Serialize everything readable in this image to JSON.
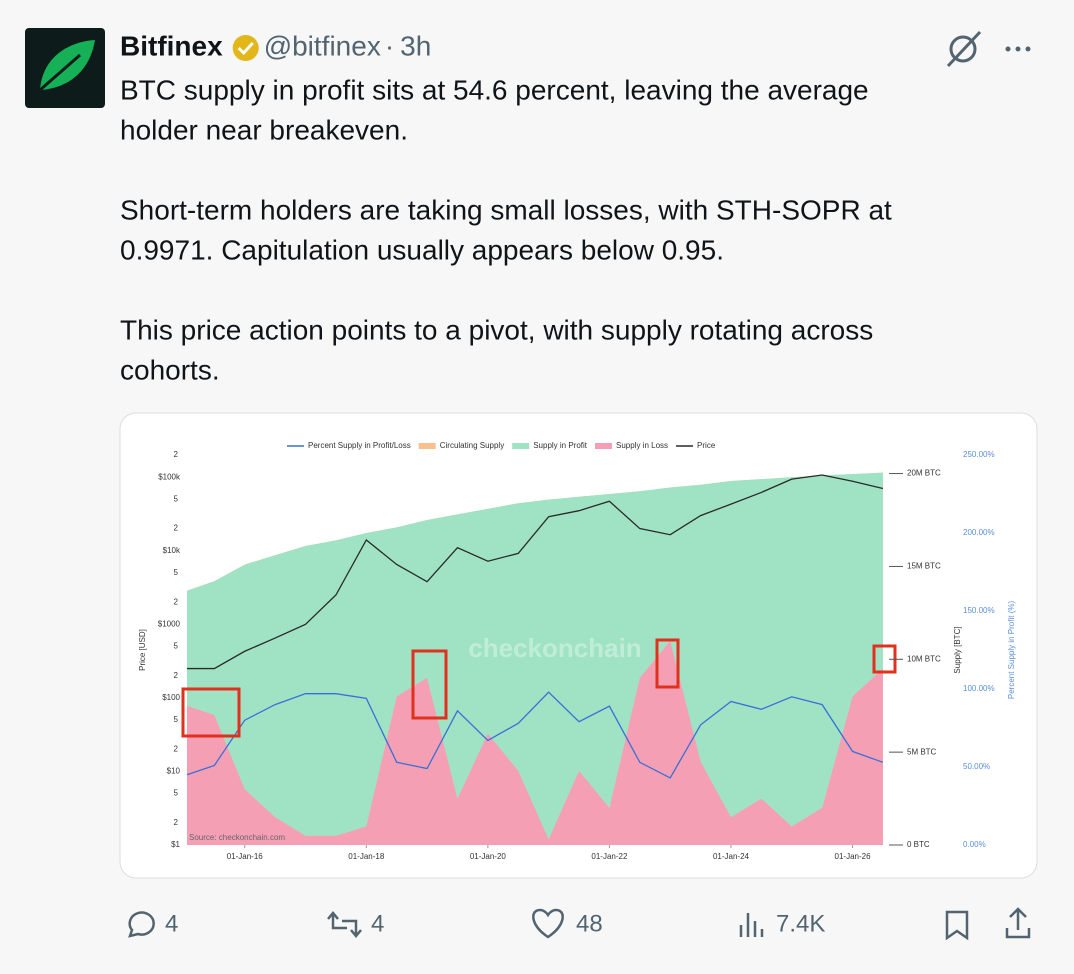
{
  "tweet": {
    "author": "Bitfinex",
    "handle": "@bitfinex",
    "separator": "·",
    "time": "3h",
    "paragraphs": [
      [
        "BTC supply in profit sits at 54.6 percent, leaving the average",
        "holder near breakeven."
      ],
      [
        "Short-term holders are taking small losses, with STH-SOPR at",
        "0.9971. Capitulation usually appears below 0.95."
      ],
      [
        "This price action points to a pivot, with supply rotating across",
        "cohorts."
      ]
    ],
    "replies": "4",
    "reposts": "4",
    "likes": "48",
    "views": "7.4K"
  },
  "chart_data": {
    "type": "area",
    "watermark": "checkonchain",
    "source": "Source: checkonchain.com",
    "y_label": "Price [USD]",
    "y2_label": "Supply [BTC]",
    "y3_label": "Percent Supply in Profit (%)",
    "x": [
      2015.05,
      2015.5,
      2016.0,
      2016.5,
      2017.0,
      2017.5,
      2018.0,
      2018.5,
      2019.0,
      2019.5,
      2020.0,
      2020.5,
      2021.0,
      2021.5,
      2022.0,
      2022.5,
      2023.0,
      2023.5,
      2024.0,
      2024.5,
      2025.0,
      2025.5,
      2026.0,
      2026.5
    ],
    "xlim": [
      2015.05,
      2026.6
    ],
    "xticks": [
      {
        "value": 2016,
        "label": "01-Jan-16"
      },
      {
        "value": 2018,
        "label": "01-Jan-18"
      },
      {
        "value": 2020,
        "label": "01-Jan-20"
      },
      {
        "value": 2022,
        "label": "01-Jan-22"
      },
      {
        "value": 2024,
        "label": "01-Jan-24"
      },
      {
        "value": 2026,
        "label": "01-Jan-26"
      }
    ],
    "ylog": true,
    "ylim": [
      1,
      200000
    ],
    "yticks": [
      {
        "value": 1,
        "label": "$1"
      },
      2,
      5,
      {
        "value": 10,
        "label": "$10"
      },
      {
        "value": 20,
        "label": "2"
      },
      {
        "value": 50,
        "label": "5"
      },
      {
        "value": 100,
        "label": "$100"
      },
      {
        "value": 200,
        "label": "2"
      },
      {
        "value": 500,
        "label": "5"
      },
      {
        "value": 1000,
        "label": "$1000"
      },
      {
        "value": 2000,
        "label": "2"
      },
      {
        "value": 5000,
        "label": "5"
      },
      {
        "value": 10000,
        "label": "$10k"
      },
      {
        "value": 20000,
        "label": "2"
      },
      {
        "value": 50000,
        "label": "5"
      },
      {
        "value": 100000,
        "label": "$100k"
      },
      {
        "value": 200000,
        "label": "2"
      }
    ],
    "y2lim": [
      0,
      21
    ],
    "y2ticks": [
      {
        "value": 0,
        "label": "0 BTC"
      },
      {
        "value": 5,
        "label": "5M BTC"
      },
      {
        "value": 10,
        "label": "10M BTC"
      },
      {
        "value": 15,
        "label": "15M BTC"
      },
      {
        "value": 20,
        "label": "20M BTC"
      }
    ],
    "y3lim": [
      0,
      250
    ],
    "y3ticks": [
      {
        "value": 0,
        "label": "0.00%"
      },
      {
        "value": 50,
        "label": "50.00%"
      },
      {
        "value": 100,
        "label": "100.00%"
      },
      {
        "value": 150,
        "label": "150.00%"
      },
      {
        "value": 200,
        "label": "200.00%"
      },
      {
        "value": 250,
        "label": "250.00%"
      }
    ],
    "series": [
      {
        "name": "Percent Supply in Profit/Loss",
        "color": "#3a6fd8",
        "axis": "y3",
        "kind": "line",
        "values": [
          45,
          51,
          80,
          90,
          97,
          97,
          94,
          53,
          49,
          86,
          67,
          78,
          98,
          79,
          89,
          53,
          43,
          77,
          92,
          87,
          95,
          90,
          60,
          53
        ]
      },
      {
        "name": "Circulating Supply",
        "color": "#f9c08f",
        "axis": "y2",
        "kind": "area",
        "values": [
          13.7,
          14.2,
          15.1,
          15.6,
          16.1,
          16.4,
          16.8,
          17.1,
          17.5,
          17.8,
          18.1,
          18.4,
          18.6,
          18.75,
          18.9,
          19.05,
          19.25,
          19.4,
          19.6,
          19.7,
          19.8,
          19.9,
          19.97,
          20.05
        ]
      },
      {
        "name": "Supply in Profit",
        "color": "#9fe3c4",
        "axis": "y2",
        "kind": "area",
        "stack": "supply",
        "values": [
          6.2,
          7.2,
          12.1,
          14.1,
          15.6,
          15.9,
          15.8,
          9.1,
          8.5,
          15.3,
          12.1,
          14.4,
          18.3,
          14.75,
          16.9,
          10.05,
          8.25,
          14.9,
          18.1,
          17.2,
          18.8,
          17.9,
          11.97,
          10.55
        ]
      },
      {
        "name": "Supply in Loss",
        "color": "#f59fb5",
        "axis": "y2",
        "kind": "area",
        "stack": "supply",
        "values": [
          7.5,
          7.0,
          3.0,
          1.5,
          0.5,
          0.5,
          1.0,
          8.0,
          9.0,
          2.5,
          6.0,
          4.0,
          0.3,
          4.0,
          2.0,
          9.0,
          11.0,
          4.5,
          1.5,
          2.5,
          1.0,
          2.0,
          8.0,
          9.5
        ]
      },
      {
        "name": "Price",
        "color": "#2a2a2a",
        "axis": "y",
        "kind": "line",
        "values": [
          250,
          250,
          430,
          650,
          1000,
          2500,
          14000,
          6500,
          3800,
          11000,
          7200,
          9200,
          29000,
          35000,
          47000,
          20000,
          16500,
          30000,
          43000,
          62000,
          94000,
          107000,
          88000,
          70000
        ]
      }
    ]
  }
}
